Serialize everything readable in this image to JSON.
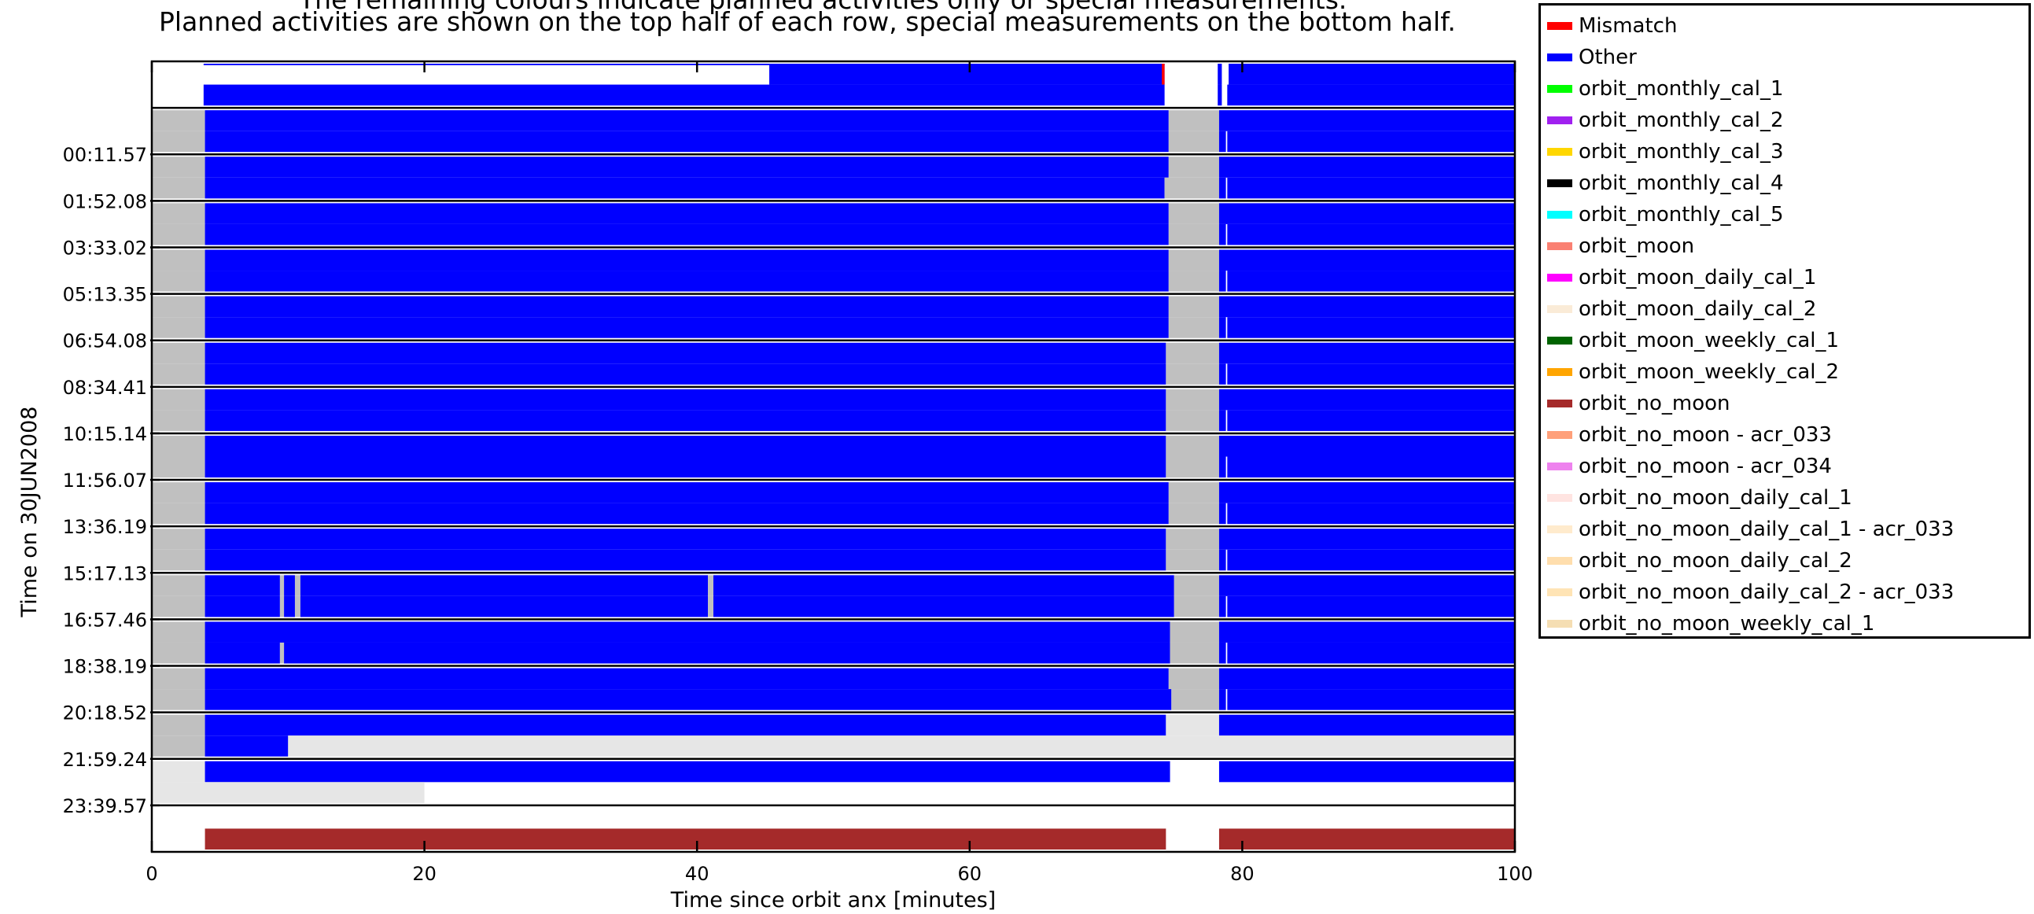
{
  "chart_data": {
    "type": "bar",
    "title_lines": [
      "The remaining colours indicate planned activities only or special measurements.",
      "Planned activities are shown on the top half of each row, special measurements on the bottom half."
    ],
    "xlabel": "Time since orbit anx [minutes]",
    "ylabel": "Time on 30JUN2008",
    "xlim": [
      0,
      100
    ],
    "xticks": [
      0,
      20,
      40,
      60,
      80,
      100
    ],
    "ytick_labels": [
      "00:11.57",
      "01:52.08",
      "03:33.02",
      "05:13.35",
      "06:54.08",
      "08:34.41",
      "10:15.14",
      "11:56.07",
      "13:36.19",
      "15:17.13",
      "16:57.46",
      "18:38.19",
      "20:18.52",
      "21:59.24",
      "23:39.57"
    ],
    "colors": {
      "Other": "#0000ff",
      "Mismatch": "#ff0000",
      "gray": "#c0c0c0",
      "lightgray": "#e6e6e6",
      "orbit_no_moon": "#a52a2a"
    },
    "rows": [
      {
        "top": [
          [
            "Other",
            3.8,
            74.3,
            0.07
          ],
          [
            "Other",
            45.3,
            74.3
          ],
          [
            "Mismatch",
            74.1,
            74.3
          ],
          [
            "Other",
            78.2,
            78.5
          ],
          [
            "Other",
            79.0,
            100.0
          ]
        ],
        "bottom": [
          [
            "Other",
            3.8,
            74.3
          ],
          [
            "Other",
            78.2,
            78.5
          ],
          [
            "Other",
            78.9,
            100.0
          ]
        ]
      },
      {
        "top": [
          [
            "gray",
            0,
            3.9
          ],
          [
            "Other",
            3.9,
            74.6
          ],
          [
            "gray",
            74.6,
            78.3
          ],
          [
            "Other",
            78.3,
            100.0
          ]
        ],
        "bottom": [
          [
            "gray",
            0,
            3.9
          ],
          [
            "Other",
            3.9,
            74.6
          ],
          [
            "gray",
            74.6,
            78.3
          ],
          [
            "Other",
            78.3,
            78.8
          ],
          [
            "Other",
            78.9,
            100.0
          ]
        ]
      },
      {
        "top": [
          [
            "gray",
            0,
            3.9
          ],
          [
            "Other",
            3.9,
            74.6
          ],
          [
            "gray",
            74.6,
            78.3
          ],
          [
            "Other",
            78.3,
            100.0
          ]
        ],
        "bottom": [
          [
            "gray",
            0,
            3.9
          ],
          [
            "Other",
            3.9,
            74.3
          ],
          [
            "gray",
            74.3,
            78.3
          ],
          [
            "Other",
            78.3,
            78.8
          ],
          [
            "Other",
            78.9,
            100.0
          ]
        ]
      },
      {
        "top": [
          [
            "gray",
            0,
            3.9
          ],
          [
            "Other",
            3.9,
            74.6
          ],
          [
            "gray",
            74.6,
            78.3
          ],
          [
            "Other",
            78.3,
            100.0
          ]
        ],
        "bottom": [
          [
            "gray",
            0,
            3.9
          ],
          [
            "Other",
            3.9,
            74.6
          ],
          [
            "gray",
            74.6,
            78.3
          ],
          [
            "Other",
            78.3,
            78.8
          ],
          [
            "Other",
            78.9,
            100.0
          ]
        ]
      },
      {
        "top": [
          [
            "gray",
            0,
            3.9
          ],
          [
            "Other",
            3.9,
            74.6
          ],
          [
            "gray",
            74.6,
            78.3
          ],
          [
            "Other",
            78.3,
            100.0
          ]
        ],
        "bottom": [
          [
            "gray",
            0,
            3.9
          ],
          [
            "Other",
            3.9,
            74.6
          ],
          [
            "gray",
            74.6,
            78.3
          ],
          [
            "Other",
            78.3,
            78.8
          ],
          [
            "Other",
            78.9,
            100.0
          ]
        ]
      },
      {
        "top": [
          [
            "gray",
            0,
            3.9
          ],
          [
            "Other",
            3.9,
            74.6
          ],
          [
            "gray",
            74.6,
            78.3
          ],
          [
            "Other",
            78.3,
            100.0
          ]
        ],
        "bottom": [
          [
            "gray",
            0,
            3.9
          ],
          [
            "Other",
            3.9,
            74.6
          ],
          [
            "gray",
            74.6,
            78.3
          ],
          [
            "Other",
            78.3,
            78.8
          ],
          [
            "Other",
            78.9,
            100.0
          ]
        ]
      },
      {
        "top": [
          [
            "gray",
            0,
            3.9
          ],
          [
            "Other",
            3.9,
            74.4
          ],
          [
            "gray",
            74.4,
            78.3
          ],
          [
            "Other",
            78.3,
            100.0
          ]
        ],
        "bottom": [
          [
            "gray",
            0,
            3.9
          ],
          [
            "Other",
            3.9,
            74.4
          ],
          [
            "gray",
            74.4,
            78.3
          ],
          [
            "Other",
            78.3,
            78.8
          ],
          [
            "Other",
            78.9,
            100.0
          ]
        ]
      },
      {
        "top": [
          [
            "gray",
            0,
            3.9
          ],
          [
            "Other",
            3.9,
            74.4
          ],
          [
            "gray",
            74.4,
            78.3
          ],
          [
            "Other",
            78.3,
            100.0
          ]
        ],
        "bottom": [
          [
            "gray",
            0,
            3.9
          ],
          [
            "Other",
            3.9,
            74.4
          ],
          [
            "gray",
            74.4,
            78.3
          ],
          [
            "Other",
            78.3,
            78.8
          ],
          [
            "Other",
            78.9,
            100.0
          ]
        ]
      },
      {
        "top": [
          [
            "gray",
            0,
            3.9
          ],
          [
            "Other",
            3.9,
            74.4
          ],
          [
            "gray",
            74.4,
            78.3
          ],
          [
            "Other",
            78.3,
            100.0
          ]
        ],
        "bottom": [
          [
            "gray",
            0,
            3.9
          ],
          [
            "Other",
            3.9,
            74.4
          ],
          [
            "gray",
            74.4,
            78.3
          ],
          [
            "Other",
            78.3,
            78.8
          ],
          [
            "Other",
            78.9,
            100.0
          ]
        ]
      },
      {
        "top": [
          [
            "gray",
            0,
            3.9
          ],
          [
            "Other",
            3.9,
            74.6
          ],
          [
            "gray",
            74.6,
            78.3
          ],
          [
            "Other",
            78.3,
            100.0
          ]
        ],
        "bottom": [
          [
            "gray",
            0,
            3.9
          ],
          [
            "Other",
            3.9,
            74.6
          ],
          [
            "gray",
            74.6,
            78.3
          ],
          [
            "Other",
            78.3,
            78.8
          ],
          [
            "Other",
            78.9,
            100.0
          ]
        ]
      },
      {
        "top": [
          [
            "gray",
            0,
            3.9
          ],
          [
            "Other",
            3.9,
            74.4
          ],
          [
            "gray",
            74.4,
            78.3
          ],
          [
            "Other",
            78.3,
            100.0
          ]
        ],
        "bottom": [
          [
            "gray",
            0,
            3.9
          ],
          [
            "Other",
            3.9,
            74.4
          ],
          [
            "gray",
            74.4,
            78.3
          ],
          [
            "Other",
            78.3,
            78.8
          ],
          [
            "Other",
            78.9,
            100.0
          ]
        ]
      },
      {
        "top": [
          [
            "gray",
            0,
            3.9
          ],
          [
            "Other",
            3.9,
            9.4
          ],
          [
            "gray",
            9.4,
            9.7
          ],
          [
            "Other",
            9.7,
            10.5
          ],
          [
            "gray",
            10.5,
            10.9
          ],
          [
            "Other",
            10.9,
            40.8
          ],
          [
            "gray",
            40.8,
            41.2
          ],
          [
            "Other",
            41.2,
            75.0
          ],
          [
            "gray",
            75.0,
            78.3
          ],
          [
            "Other",
            78.3,
            100.0
          ]
        ],
        "bottom": [
          [
            "gray",
            0,
            3.9
          ],
          [
            "Other",
            3.9,
            9.4
          ],
          [
            "gray",
            9.4,
            9.7
          ],
          [
            "Other",
            9.7,
            10.5
          ],
          [
            "gray",
            10.5,
            10.9
          ],
          [
            "Other",
            10.9,
            40.8
          ],
          [
            "gray",
            40.8,
            41.2
          ],
          [
            "Other",
            41.2,
            75.0
          ],
          [
            "gray",
            75.0,
            78.3
          ],
          [
            "Other",
            78.3,
            78.8
          ],
          [
            "Other",
            78.9,
            100.0
          ]
        ]
      },
      {
        "top": [
          [
            "gray",
            0,
            3.9
          ],
          [
            "Other",
            3.9,
            74.7
          ],
          [
            "gray",
            74.7,
            78.3
          ],
          [
            "Other",
            78.3,
            100.0
          ]
        ],
        "bottom": [
          [
            "gray",
            0,
            3.9
          ],
          [
            "Other",
            3.9,
            9.4
          ],
          [
            "gray",
            9.4,
            9.7
          ],
          [
            "Other",
            9.7,
            74.7
          ],
          [
            "gray",
            74.7,
            78.3
          ],
          [
            "Other",
            78.3,
            78.8
          ],
          [
            "Other",
            78.9,
            100.0
          ]
        ]
      },
      {
        "top": [
          [
            "gray",
            0,
            3.9
          ],
          [
            "Other",
            3.9,
            74.6
          ],
          [
            "gray",
            74.6,
            78.3
          ],
          [
            "Other",
            78.3,
            100.0
          ]
        ],
        "bottom": [
          [
            "gray",
            0,
            3.9
          ],
          [
            "Other",
            3.9,
            74.8
          ],
          [
            "gray",
            74.8,
            78.3
          ],
          [
            "Other",
            78.3,
            78.8
          ],
          [
            "Other",
            78.9,
            100.0
          ]
        ]
      },
      {
        "top": [
          [
            "gray",
            0,
            3.9
          ],
          [
            "Other",
            3.9,
            74.4
          ],
          [
            "lightgray",
            74.4,
            78.3
          ],
          [
            "Other",
            78.3,
            100.0
          ]
        ],
        "bottom": [
          [
            "gray",
            0,
            3.9
          ],
          [
            "Other",
            3.9,
            10.0
          ],
          [
            "lightgray",
            10.0,
            100.0
          ]
        ]
      },
      {
        "top": [
          [
            "lightgray",
            0,
            3.9
          ],
          [
            "Other",
            3.9,
            74.7
          ],
          [
            "Other",
            78.3,
            100.0
          ]
        ],
        "bottom": [
          [
            "lightgray",
            0,
            20.0
          ]
        ]
      },
      {
        "top": [],
        "bottom": [
          [
            "orbit_no_moon",
            3.9,
            74.4
          ],
          [
            "orbit_no_moon",
            78.3,
            100.0
          ]
        ]
      }
    ]
  },
  "legend": [
    {
      "label": "Mismatch",
      "color": "#ff0000"
    },
    {
      "label": "Other",
      "color": "#0000ff"
    },
    {
      "label": "orbit_monthly_cal_1",
      "color": "#00ff00"
    },
    {
      "label": "orbit_monthly_cal_2",
      "color": "#a020f0"
    },
    {
      "label": "orbit_monthly_cal_3",
      "color": "#ffd700"
    },
    {
      "label": "orbit_monthly_cal_4",
      "color": "#000000"
    },
    {
      "label": "orbit_monthly_cal_5",
      "color": "#00ffff"
    },
    {
      "label": "orbit_moon",
      "color": "#fa8072"
    },
    {
      "label": "orbit_moon_daily_cal_1",
      "color": "#ff00ff"
    },
    {
      "label": "orbit_moon_daily_cal_2",
      "color": "#faebd7"
    },
    {
      "label": "orbit_moon_weekly_cal_1",
      "color": "#006400"
    },
    {
      "label": "orbit_moon_weekly_cal_2",
      "color": "#ffa500"
    },
    {
      "label": "orbit_no_moon",
      "color": "#a52a2a"
    },
    {
      "label": "orbit_no_moon - acr_033",
      "color": "#ffa07a"
    },
    {
      "label": "orbit_no_moon - acr_034",
      "color": "#ee82ee"
    },
    {
      "label": "orbit_no_moon_daily_cal_1",
      "color": "#ffe4e1"
    },
    {
      "label": "orbit_no_moon_daily_cal_1 - acr_033",
      "color": "#ffebcd"
    },
    {
      "label": "orbit_no_moon_daily_cal_2",
      "color": "#ffdead"
    },
    {
      "label": "orbit_no_moon_daily_cal_2 - acr_033",
      "color": "#ffe4b5"
    },
    {
      "label": "orbit_no_moon_weekly_cal_1",
      "color": "#f5deb3"
    }
  ]
}
